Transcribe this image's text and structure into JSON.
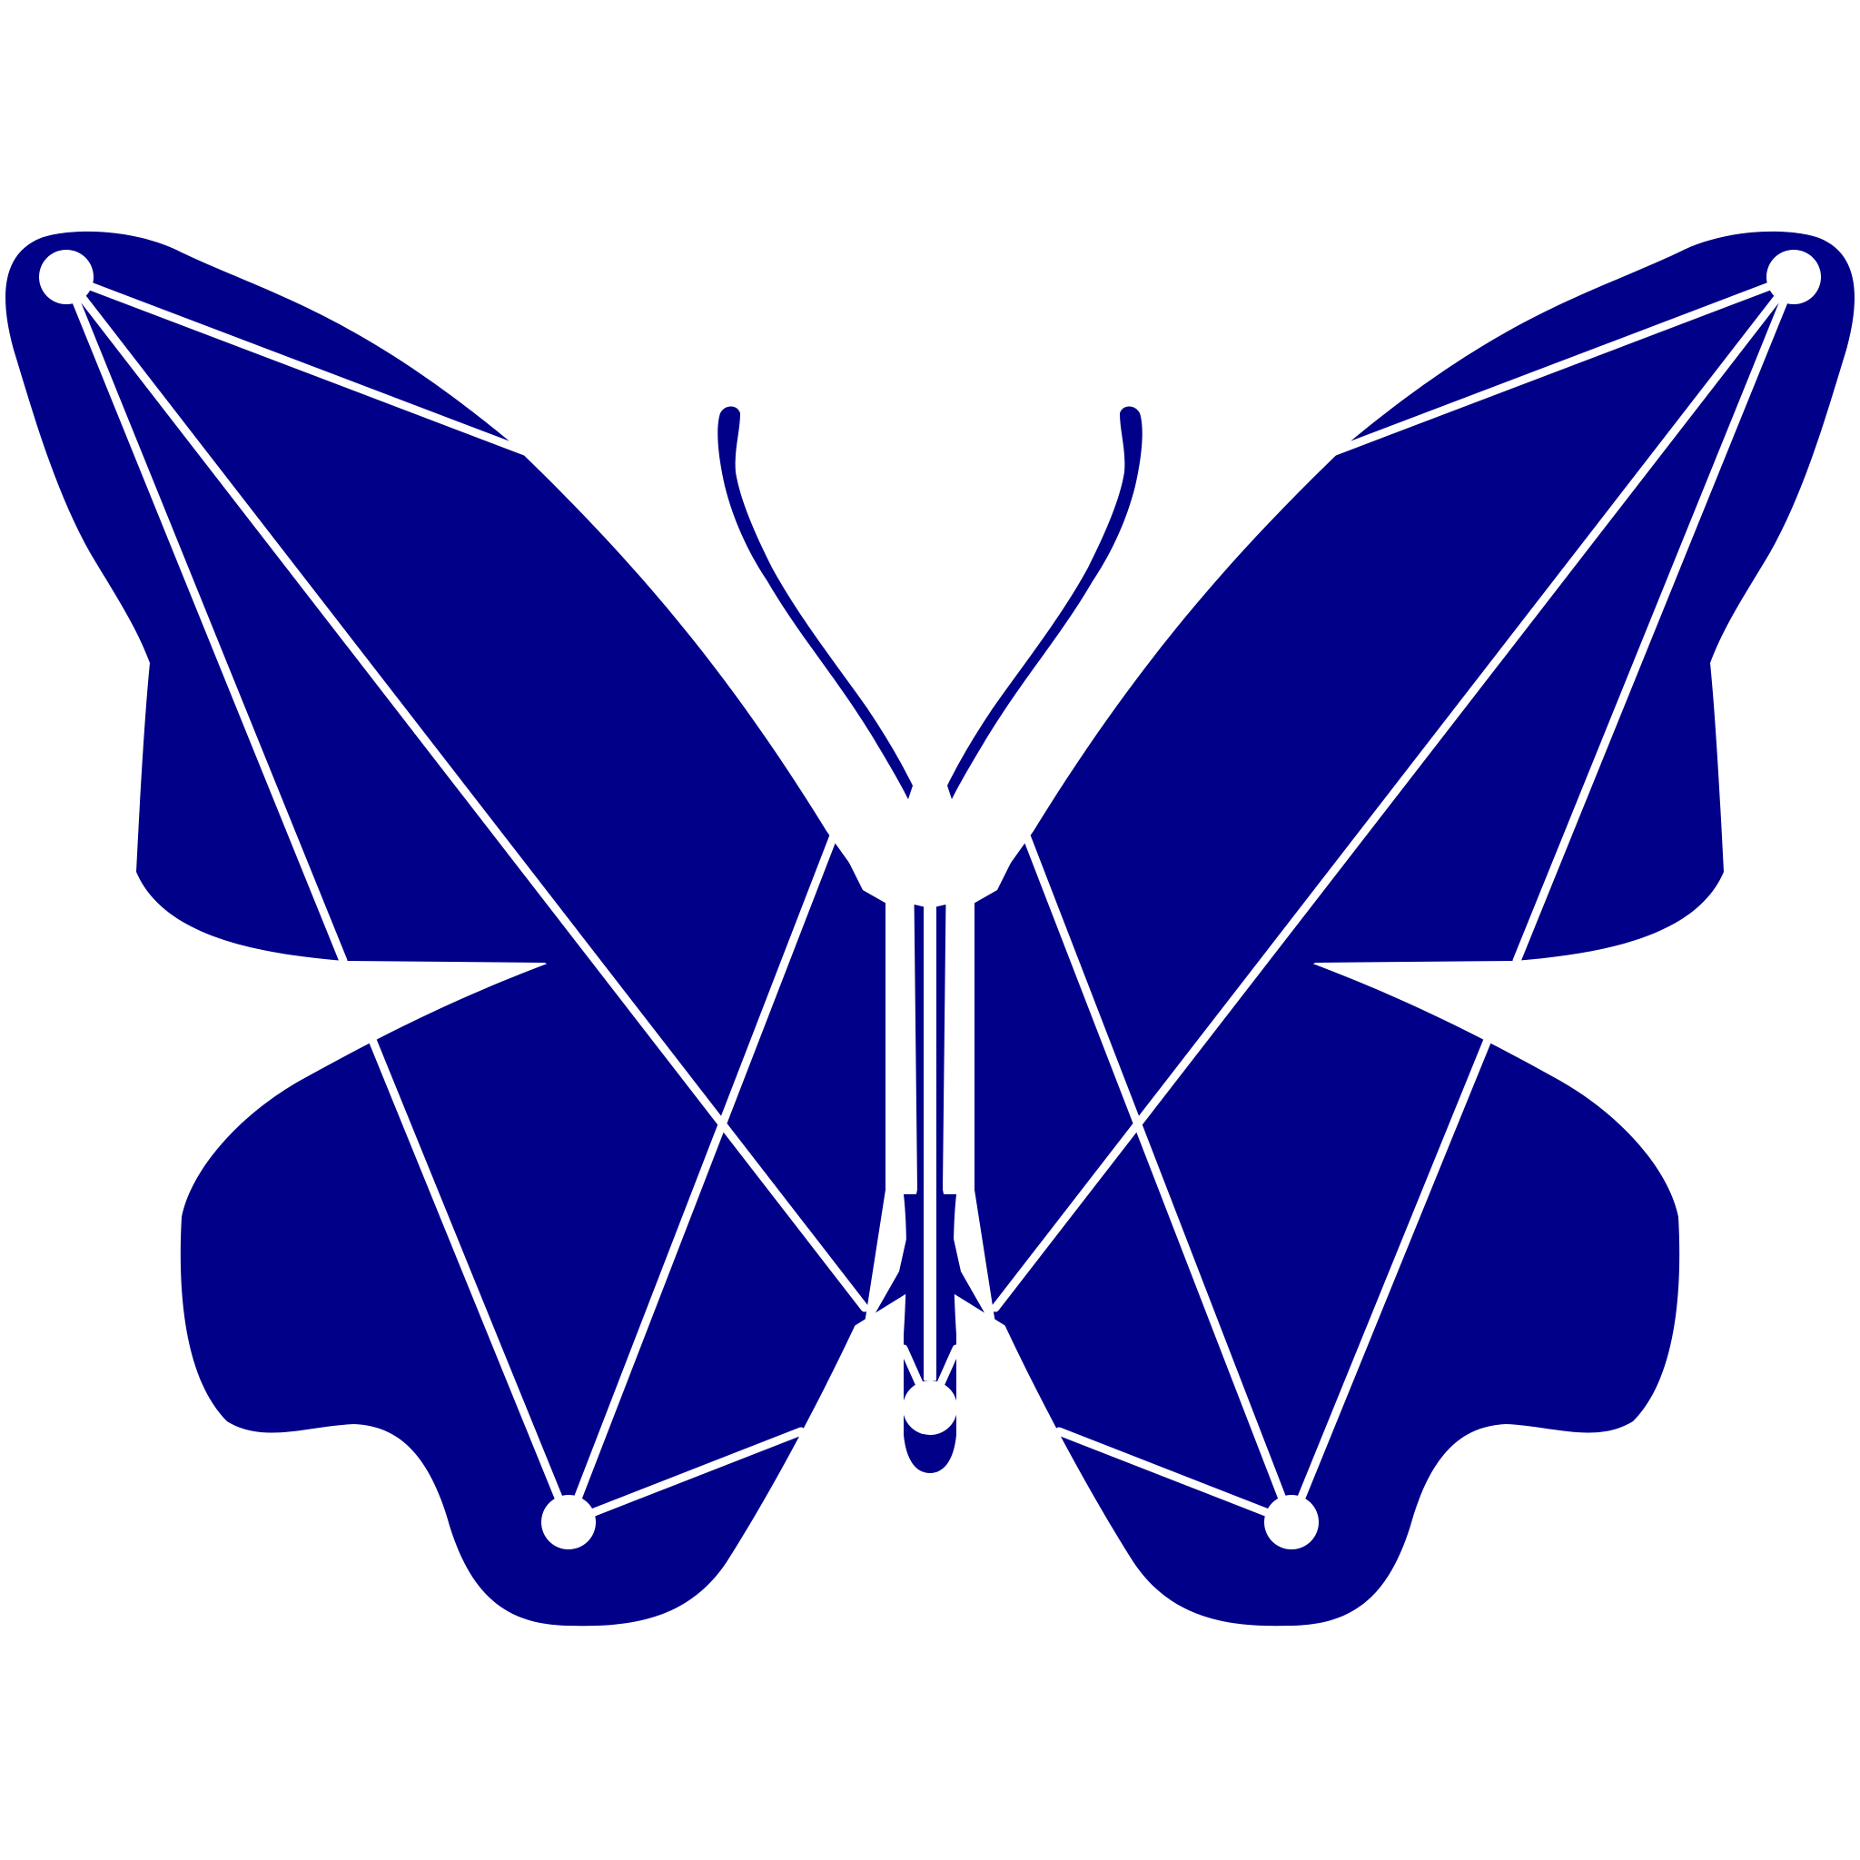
{
  "artwork": {
    "subject": "butterfly-icon",
    "style": "geometric-line-art"
  },
  "colors": {
    "background": "#ffffff",
    "wing_fill": "#000088",
    "line": "#ffffff"
  }
}
